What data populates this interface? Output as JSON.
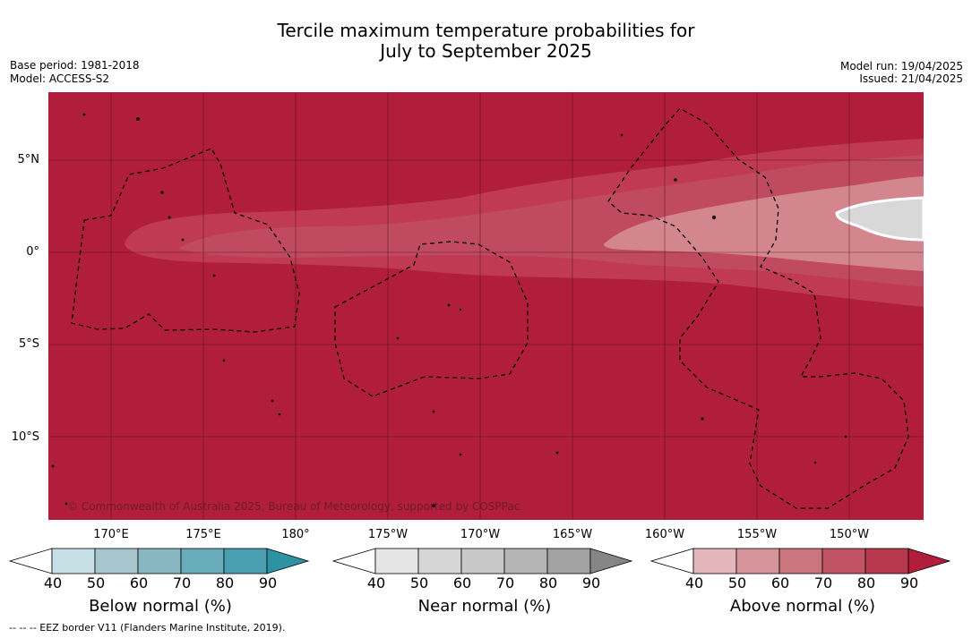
{
  "header": {
    "title_line1": "Tercile maximum temperature probabilities for",
    "title_line2": "July to September 2025",
    "base_period": "Base period: 1981-2018",
    "model": "Model: ACCESS-S2",
    "model_run": "Model run: 19/04/2025",
    "issued": "Issued: 21/04/2025"
  },
  "map": {
    "lat_labels": [
      "5°N",
      "0°",
      "5°S",
      "10°S"
    ],
    "lon_labels": [
      "170°E",
      "175°E",
      "180°",
      "175°W",
      "170°W",
      "165°W",
      "160°W",
      "155°W",
      "150°W"
    ],
    "copyright": "© Commonwealth of Australia 2025, Bureau of Meteorology, supported by COSPPac",
    "colors": {
      "above_60": "#b01e3b",
      "above_70": "#bf3a52",
      "above_80": "#c9596c",
      "above_50": "#d4868f",
      "near": "#d8d8d8"
    }
  },
  "legends": {
    "below": {
      "title": "Below normal (%)",
      "ticks": [
        "40",
        "50",
        "60",
        "70",
        "80",
        "90"
      ],
      "colors": [
        "#ffffff",
        "#c7e0e6",
        "#a7c6cd",
        "#88b7c1",
        "#6aadba",
        "#4aa0b0",
        "#2e92a5"
      ]
    },
    "near": {
      "title": "Near normal (%)",
      "ticks": [
        "40",
        "50",
        "60",
        "70",
        "80",
        "90"
      ],
      "colors": [
        "#ffffff",
        "#e5e5e5",
        "#d6d6d6",
        "#c8c8c8",
        "#b5b5b5",
        "#a2a2a2",
        "#868686"
      ]
    },
    "above": {
      "title": "Above normal (%)",
      "ticks": [
        "40",
        "50",
        "60",
        "70",
        "80",
        "90"
      ],
      "colors": [
        "#ffffff",
        "#e2b6ba",
        "#d6959a",
        "#cb767f",
        "#c05465",
        "#b8384d",
        "#b01e3b"
      ]
    }
  },
  "footnote": "-- -- -- EEZ border V11 (Flanders Marine Institute, 2019)."
}
